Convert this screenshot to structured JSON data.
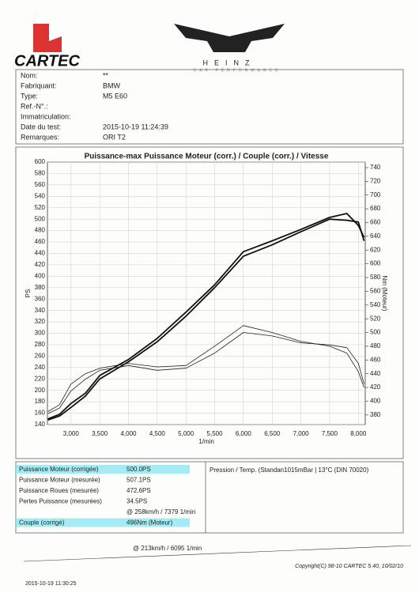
{
  "header": {
    "brand": "CARTEC",
    "partner": "HEINZ",
    "partner_sub": "CAR PERFORMANCE"
  },
  "fields": [
    {
      "label": "Nom:",
      "value": "**"
    },
    {
      "label": "Fabriquant:",
      "value": "BMW"
    },
    {
      "label": "Type:",
      "value": "M5 E60"
    },
    {
      "label": "Ref.-N°.:"
    },
    {
      "label": "Immatriculation:"
    },
    {
      "label": "Date du test:",
      "value": "2015-10-19 11:24:39"
    },
    {
      "label": "Remarques:",
      "value": "ORI T2"
    }
  ],
  "chart_data": {
    "type": "line",
    "title": "Puissance-max Puissance Moteur (corr.) / Couple (corr.) / Vitesse",
    "x_label": "1/min",
    "y_label": "PS",
    "y2_label": "Nm (Moteur)",
    "x": [
      2600,
      2800,
      3000,
      3250,
      3500,
      4000,
      4500,
      5000,
      5500,
      6000,
      6500,
      7000,
      7500,
      7800,
      8000,
      8100
    ],
    "series": [
      {
        "color": "#111",
        "width": 1.8,
        "values": [
          150,
          158,
          177,
          195,
          226,
          254,
          291,
          337,
          385,
          443,
          462,
          482,
          503,
          510,
          489,
          468
        ]
      },
      {
        "color": "#111",
        "width": 1.8,
        "values": [
          148,
          155,
          170,
          190,
          220,
          250,
          285,
          330,
          380,
          435,
          455,
          478,
          500,
          498,
          495,
          462
        ]
      },
      {
        "color": "#222",
        "width": 0.8,
        "axis": "y2",
        "values": [
          385,
          395,
          425,
          440,
          448,
          455,
          450,
          452,
          480,
          510,
          500,
          487,
          480,
          470,
          443,
          420
        ]
      },
      {
        "color": "#222",
        "width": 0.8,
        "axis": "y2",
        "values": [
          382,
          390,
          415,
          432,
          445,
          452,
          445,
          448,
          470,
          500,
          495,
          485,
          482,
          478,
          455,
          425
        ]
      }
    ],
    "xlim": [
      2590,
      8120
    ],
    "ylim": [
      140,
      600
    ],
    "y2lim": [
      366,
      748
    ],
    "xticks": [
      {
        "value": 3000,
        "label": "3,000"
      },
      {
        "value": 3500,
        "label": "3,500"
      },
      {
        "value": 4000,
        "label": "4,000"
      },
      {
        "value": 4500,
        "label": "4,500"
      },
      {
        "value": 5000,
        "label": "5,000"
      },
      {
        "value": 5500,
        "label": "5,500"
      },
      {
        "value": 6000,
        "label": "6,000"
      },
      {
        "value": 6500,
        "label": "6,500"
      },
      {
        "value": 7000,
        "label": "7,000"
      },
      {
        "value": 7500,
        "label": "7,500"
      },
      {
        "value": 8000,
        "label": "8,000"
      }
    ],
    "yticks": [
      140,
      160,
      180,
      200,
      220,
      240,
      260,
      280,
      300,
      320,
      340,
      360,
      380,
      400,
      420,
      440,
      460,
      480,
      500,
      520,
      540,
      560,
      580,
      600
    ],
    "y2ticks": [
      380,
      400,
      420,
      440,
      460,
      480,
      500,
      520,
      540,
      560,
      580,
      600,
      620,
      640,
      660,
      680,
      700,
      720,
      740
    ],
    "grid": true
  },
  "results": [
    {
      "label": "Puissance Moteur (corrigée)",
      "value": "500.0PS",
      "highlight": true
    },
    {
      "label": "Puissance Moteur (mesurée)",
      "value": "507.1PS"
    },
    {
      "label": "Puissance Roues (mesurée)",
      "value": "472.6PS"
    },
    {
      "label": "Pertes Puissance (mesurées)",
      "value": "34.5PS"
    },
    {
      "value": "@ 258km/h / 7379 1/min"
    },
    {
      "label": "Couple (corrigé)",
      "value": "496Nm (Moteur)",
      "highlight": true
    }
  ],
  "conditions": "Pression / Temp. (Standan1015mBar | 13°C   (DIN 70020)",
  "torque_speed": "@ 213km/h / 6095 1/min",
  "footer": {
    "copyright": "Copyright(C) 98-10 CARTEC 5.40, 10/02/10",
    "printed": "2015-10-19 11:30:25"
  }
}
